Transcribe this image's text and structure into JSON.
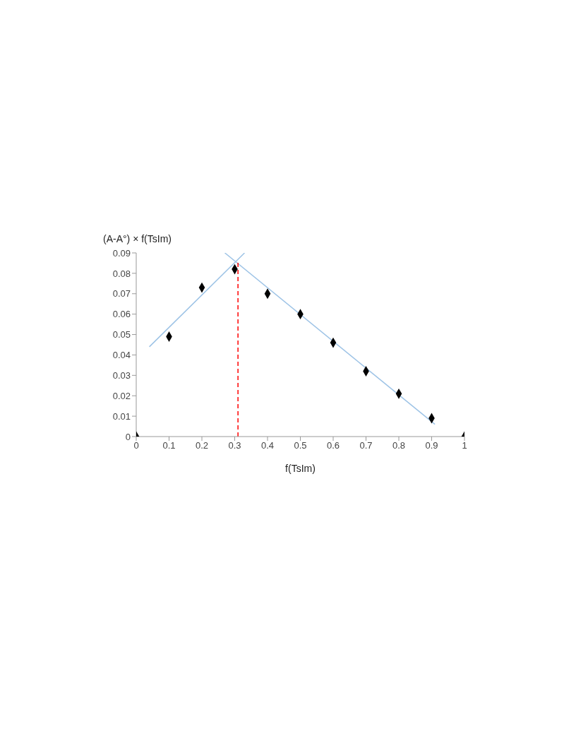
{
  "chart_data": {
    "type": "scatter",
    "xlabel": "f(TsIm)",
    "ylabel": "(A-A°) × f(TsIm)",
    "x": [
      0,
      0.1,
      0.2,
      0.3,
      0.4,
      0.5,
      0.6,
      0.7,
      0.8,
      0.9,
      1
    ],
    "xlim": [
      0,
      1
    ],
    "xticks": [
      0,
      0.1,
      0.2,
      0.3,
      0.4,
      0.5,
      0.6,
      0.7,
      0.8,
      0.9,
      1
    ],
    "ylim": [
      0,
      0.09
    ],
    "yticks": [
      0,
      0.01,
      0.02,
      0.03,
      0.04,
      0.05,
      0.06,
      0.07,
      0.08,
      0.09
    ],
    "grid": false,
    "legend": false,
    "marker": "diamond",
    "series": [
      {
        "color": "#000000",
        "values": [
          0,
          0.049,
          0.073,
          0.082,
          0.07,
          0.06,
          0.046,
          0.032,
          0.021,
          0.009,
          0
        ]
      },
      {
        "type": "line",
        "color": "#9dc3e6",
        "x": [
          0.04,
          0.33
        ],
        "values": [
          0.044,
          0.09
        ],
        "marker": "none",
        "line_style": "solid"
      },
      {
        "type": "line",
        "color": "#9dc3e6",
        "x": [
          0.27,
          0.91
        ],
        "values": [
          0.09,
          0.006
        ],
        "marker": "none",
        "line_style": "solid"
      },
      {
        "type": "line",
        "color": "#ff0000",
        "x": [
          0.31,
          0.31
        ],
        "values": [
          0,
          0.086
        ],
        "marker": "none",
        "line_style": "dashed"
      }
    ]
  }
}
